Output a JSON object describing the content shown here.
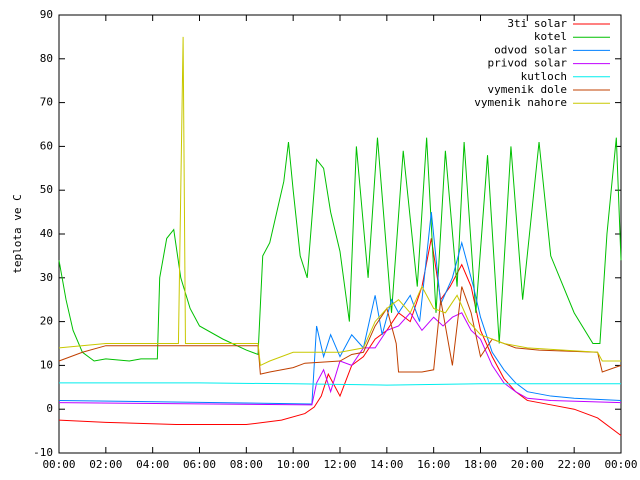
{
  "chart_data": {
    "type": "line",
    "ylabel": "teplota ve C",
    "xlim": [
      0,
      24
    ],
    "ylim": [
      -10,
      90
    ],
    "xticks": [
      {
        "value": 0,
        "label": "00:00"
      },
      {
        "value": 2,
        "label": "02:00"
      },
      {
        "value": 4,
        "label": "04:00"
      },
      {
        "value": 6,
        "label": "06:00"
      },
      {
        "value": 8,
        "label": "08:00"
      },
      {
        "value": 10,
        "label": "10:00"
      },
      {
        "value": 12,
        "label": "12:00"
      },
      {
        "value": 14,
        "label": "14:00"
      },
      {
        "value": 16,
        "label": "16:00"
      },
      {
        "value": 18,
        "label": "18:00"
      },
      {
        "value": 20,
        "label": "20:00"
      },
      {
        "value": 22,
        "label": "22:00"
      },
      {
        "value": 24,
        "label": "00:00"
      }
    ],
    "yticks": [
      -10,
      0,
      10,
      20,
      30,
      40,
      50,
      60,
      70,
      80,
      90
    ],
    "legend": "top-right",
    "series": [
      {
        "name": "3ti solar",
        "color": "#ff0000",
        "x": [
          0,
          2,
          5,
          8,
          9.5,
          10.5,
          10.9,
          11.2,
          11.5,
          12,
          12.5,
          13,
          13.5,
          14,
          14.5,
          15,
          15.5,
          15.9,
          16.3,
          16.7,
          17.2,
          17.6,
          18,
          18.5,
          19,
          19.5,
          20,
          21,
          22,
          23,
          24
        ],
        "values": [
          -2.5,
          -3,
          -3.5,
          -3.5,
          -2.5,
          -1,
          0.5,
          3,
          8,
          3,
          10,
          12,
          16,
          18,
          22,
          20,
          28,
          39,
          25,
          28,
          33,
          28,
          18,
          12,
          7,
          4,
          2,
          1,
          0,
          -2,
          -6
        ]
      },
      {
        "name": "kotel",
        "color": "#00c000",
        "x": [
          0,
          0.3,
          0.6,
          1,
          1.5,
          2,
          3,
          3.5,
          4.2,
          4.3,
          4.6,
          4.9,
          5.2,
          5.6,
          6,
          7,
          8,
          8.5,
          8.7,
          9,
          9.3,
          9.6,
          9.8,
          10,
          10.3,
          10.6,
          11,
          11.3,
          11.6,
          12,
          12.4,
          12.7,
          13.2,
          13.6,
          14.2,
          14.7,
          15.3,
          15.7,
          16.1,
          16.5,
          17,
          17.3,
          17.8,
          18.3,
          18.8,
          19.3,
          19.8,
          20.5,
          21,
          22,
          22.8,
          23.1,
          23.4,
          23.8,
          24
        ],
        "values": [
          34,
          25,
          18,
          13,
          11,
          11.5,
          11,
          11.5,
          11.5,
          30,
          39,
          41,
          30,
          23,
          19,
          16,
          13.5,
          12.5,
          35,
          38,
          45,
          52,
          61,
          50,
          35,
          30,
          57,
          55,
          45,
          36,
          20,
          60,
          30,
          62,
          22,
          59,
          28,
          62,
          22,
          59,
          28,
          61,
          22,
          58,
          15,
          60,
          25,
          61,
          35,
          22,
          15,
          15,
          40,
          62,
          34
        ]
      },
      {
        "name": "odvod solar",
        "color": "#0080ff",
        "x": [
          0,
          10.8,
          11,
          11.3,
          11.6,
          12,
          12.5,
          13,
          13.5,
          13.8,
          14.2,
          14.5,
          15,
          15.4,
          15.9,
          16.3,
          16.8,
          17.2,
          17.7,
          18,
          18.5,
          19,
          19.5,
          20,
          21,
          22,
          24
        ],
        "values": [
          2,
          1.2,
          19,
          12,
          17,
          12,
          17,
          14,
          26,
          17,
          25,
          22,
          26,
          20,
          45,
          24,
          30,
          38,
          28,
          21,
          13,
          9,
          6,
          4,
          3,
          2.5,
          2
        ]
      },
      {
        "name": "privod solar",
        "color": "#c000ff",
        "x": [
          0,
          10.8,
          11,
          11.3,
          11.6,
          12,
          12.5,
          13,
          13.5,
          14,
          14.5,
          15,
          15.5,
          16,
          16.4,
          16.8,
          17.2,
          17.6,
          18,
          18.5,
          19,
          19.5,
          20,
          21,
          24
        ],
        "values": [
          1.5,
          1,
          6,
          9,
          4,
          11,
          10,
          14,
          14,
          18,
          19,
          22,
          18,
          21,
          19,
          21,
          22,
          18,
          16,
          10,
          6,
          4,
          2.5,
          2,
          1.5
        ]
      },
      {
        "name": "kutloch",
        "color": "#00eeee",
        "x": [
          0,
          6,
          10,
          14,
          18,
          24
        ],
        "values": [
          6,
          6,
          5.8,
          5.5,
          5.8,
          5.8
        ]
      },
      {
        "name": "vymenik dole",
        "color": "#c04000",
        "x": [
          0,
          1,
          2,
          8.5,
          8.6,
          9,
          10,
          10.5,
          12,
          12.5,
          13,
          13.5,
          14,
          14.4,
          14.5,
          15.5,
          16,
          16.3,
          16.8,
          17.2,
          17.6,
          18,
          18.5,
          19.5,
          20.5,
          23,
          23.2,
          24
        ],
        "values": [
          11,
          13,
          14.5,
          14.5,
          8,
          8.5,
          9.5,
          10.5,
          11,
          12.5,
          13,
          19,
          23,
          15,
          8.5,
          8.5,
          9,
          25,
          10,
          28,
          22,
          12,
          16,
          14,
          13.5,
          13,
          8.5,
          10
        ]
      },
      {
        "name": "vymenik nahore",
        "color": "#c8c800",
        "x": [
          0,
          2,
          5,
          5.1,
          5.3,
          5.4,
          8.5,
          8.6,
          9,
          10,
          11,
          12,
          13,
          13.5,
          14,
          14.5,
          15,
          15.5,
          16,
          16.5,
          17,
          17.5,
          18,
          19,
          20,
          23,
          23.2,
          24
        ],
        "values": [
          14,
          15,
          15,
          15,
          85,
          15,
          15,
          10,
          11,
          13,
          13,
          13,
          14,
          20,
          23,
          25,
          22,
          28,
          23,
          22,
          26,
          20,
          17,
          15,
          14,
          13,
          11,
          11
        ]
      }
    ]
  }
}
